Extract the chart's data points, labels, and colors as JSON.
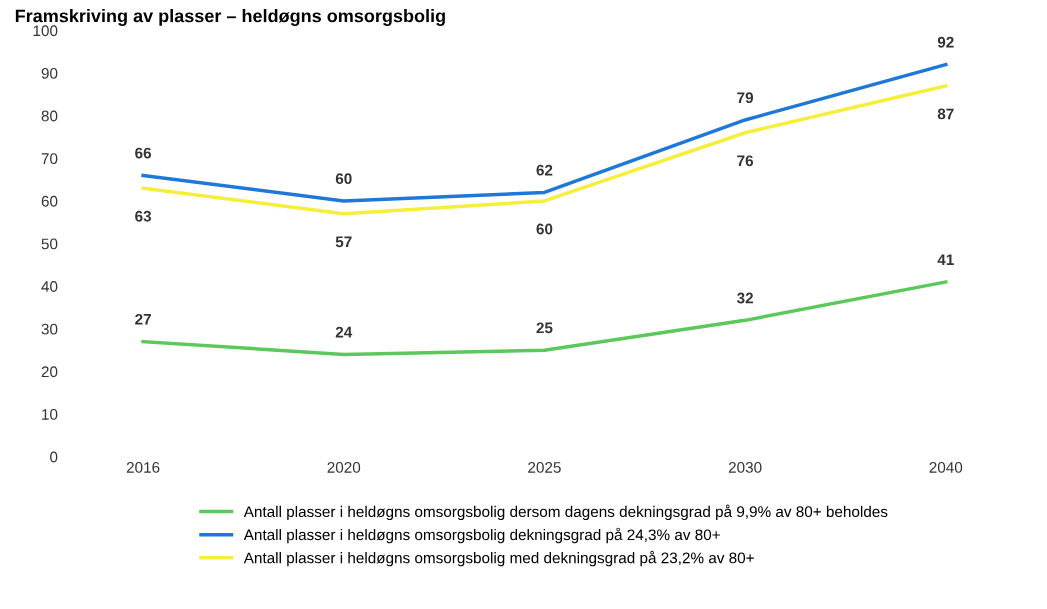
{
  "chart_data": {
    "type": "line",
    "title": "Framskriving av plasser – heldøgns omsorgsbolig",
    "categories": [
      "2016",
      "2020",
      "2025",
      "2030",
      "2040"
    ],
    "series": [
      {
        "name": "Antall plasser i heldøgns omsorgsbolig dersom dagens dekningsgrad på 9,9% av 80+ beholdes",
        "color": "#5cc85c",
        "values": [
          27,
          24,
          25,
          32,
          41
        ]
      },
      {
        "name": "Antall plasser i heldøgns omsorgsbolig dekningsgrad på 24,3% av 80+",
        "color": "#1f78d8",
        "values": [
          66,
          60,
          62,
          79,
          92
        ]
      },
      {
        "name": "Antall plasser i heldøgns omsorgsbolig med dekningsgrad på 23,2% av 80+",
        "color": "#f5ef3c",
        "values": [
          63,
          57,
          60,
          76,
          87
        ]
      }
    ],
    "ylim": [
      0,
      100
    ],
    "yticks": [
      0,
      10,
      20,
      30,
      40,
      50,
      60,
      70,
      80,
      90,
      100
    ],
    "data_labels": true,
    "legend": "bottom",
    "grid": false,
    "marker": "none",
    "line_style": "solid"
  }
}
